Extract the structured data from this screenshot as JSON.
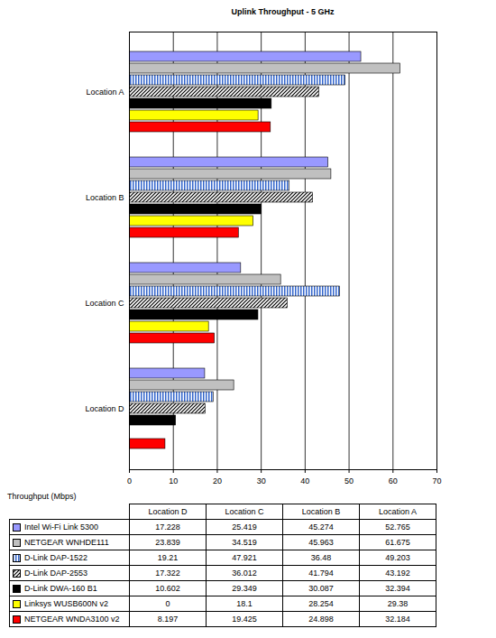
{
  "chart_data": {
    "type": "bar",
    "title": "Uplink Throughput - 5 GHz",
    "x_label": "Throughput (Mbps)",
    "orientation": "horizontal",
    "categories": [
      "Location D",
      "Location C",
      "Location B",
      "Location A"
    ],
    "series": [
      {
        "name": "Intel Wi-Fi Link 5300",
        "color": "#9999ff",
        "values": [
          17.228,
          25.419,
          45.274,
          52.765
        ]
      },
      {
        "name": "NETGEAR WNHDE111",
        "color": "#c0c0c0",
        "values": [
          23.839,
          34.519,
          45.963,
          61.675
        ]
      },
      {
        "name": "D-Link DAP-1522",
        "color": "#3366cc",
        "values": [
          19.21,
          47.921,
          36.48,
          49.203
        ]
      },
      {
        "name": "D-Link DAP-2553",
        "color": "#000000",
        "values": [
          17.322,
          36.012,
          41.794,
          43.192
        ]
      },
      {
        "name": "D-Link DWA-160 B1",
        "color": "#000000",
        "values": [
          10.602,
          29.349,
          30.087,
          32.394
        ]
      },
      {
        "name": "Linksys WUSB600N v2",
        "color": "#ffff00",
        "values": [
          0,
          18.1,
          28.254,
          29.38
        ]
      },
      {
        "name": "NETGEAR WNDA3100 v2",
        "color": "#ff0000",
        "values": [
          8.197,
          19.425,
          24.898,
          32.184
        ]
      }
    ],
    "xlim": [
      0,
      70
    ],
    "xticks": [
      0,
      10,
      20,
      30,
      40,
      50,
      60,
      70
    ],
    "grid": true
  }
}
